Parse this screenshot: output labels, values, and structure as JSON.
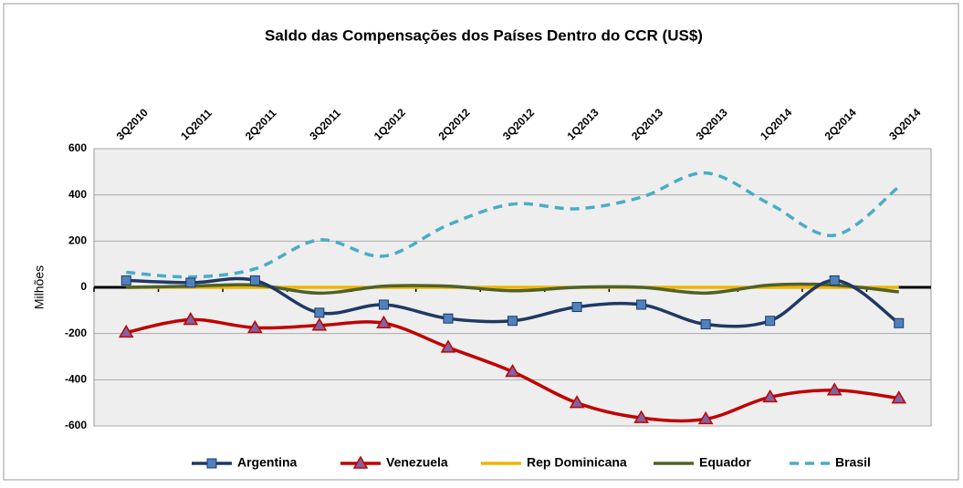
{
  "chart_data": {
    "type": "line",
    "title": "Saldo das Compensações dos Países Dentro do CCR (US$)",
    "y_label": "Milhões",
    "categories": [
      "3Q2010",
      "1Q2011",
      "2Q2011",
      "3Q2011",
      "1Q2012",
      "2Q2012",
      "3Q2012",
      "1Q2013",
      "2Q2013",
      "3Q2013",
      "1Q2014",
      "2Q2014",
      "3Q2014"
    ],
    "series": [
      {
        "name": "Argentina",
        "color": "#1f3864",
        "marker": "square",
        "marker_color": "#4f81bd",
        "values": [
          30,
          20,
          30,
          -110,
          -75,
          -135,
          -145,
          -85,
          -75,
          -160,
          -145,
          30,
          -155
        ]
      },
      {
        "name": "Venezuela",
        "color": "#c00000",
        "marker": "triangle",
        "marker_color": "#8064a2",
        "values": [
          -195,
          -140,
          -175,
          -165,
          -155,
          -260,
          -365,
          -500,
          -565,
          -570,
          -475,
          -445,
          -480
        ]
      },
      {
        "name": "Rep Dominicana",
        "color": "#f0b400",
        "values": [
          0,
          0,
          0,
          0,
          0,
          0,
          0,
          0,
          0,
          0,
          0,
          0,
          0
        ]
      },
      {
        "name": "Equador",
        "color": "#4f6228",
        "values": [
          0,
          5,
          10,
          -25,
          5,
          5,
          -15,
          0,
          0,
          -25,
          10,
          10,
          -20
        ]
      },
      {
        "name": "Brasil",
        "color": "#4bacc6",
        "dash": true,
        "values": [
          65,
          45,
          80,
          205,
          135,
          270,
          360,
          340,
          390,
          495,
          360,
          225,
          435
        ]
      }
    ],
    "ylim": [
      -600,
      600
    ],
    "yticks": [
      -600,
      -400,
      -200,
      0,
      200,
      400,
      600
    ],
    "grid": true,
    "legend": "bottom"
  }
}
